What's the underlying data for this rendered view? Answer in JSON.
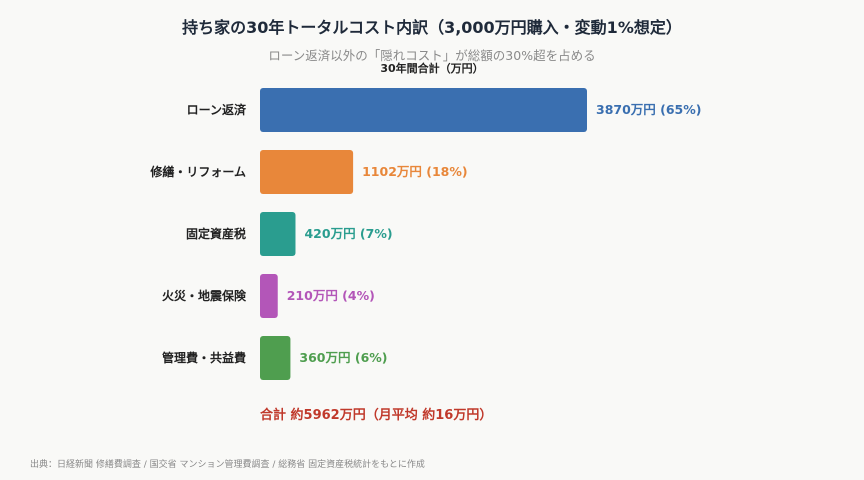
{
  "title": "持ち家の30年トータルコスト内訳（3,000万円購入・変動1%想定）",
  "subtitle": "ローン返済以外の「隠れコスト」が総額の30%超を占める",
  "axis_label": "30年間合計（万円）",
  "total_label": "合計 約5962万円（月平均 約16万円）",
  "source": "出典：日経新聞 修繕費調査 / 国交省 マンション管理費調査 / 総務省 固定資産税統計をもとに作成",
  "colors": {
    "loan": "#3a6fb0",
    "repair": "#e8873a",
    "tax": "#2a9d8f",
    "insurance": "#b356b8",
    "management": "#4f9e4f",
    "total": "#c0392b"
  },
  "chart_data": {
    "type": "bar",
    "orientation": "horizontal",
    "title": "持ち家の30年トータルコスト内訳（3,000万円購入・変動1%想定）",
    "subtitle": "ローン返済以外の「隠れコスト」が総額の30%超を占める",
    "xlabel": "30年間合計（万円）",
    "categories": [
      "ローン返済",
      "修繕・リフォーム",
      "固定資産税",
      "火災・地震保険",
      "管理費・共益費"
    ],
    "values": [
      3870,
      1102,
      420,
      210,
      360
    ],
    "data_labels": [
      "3870万円 (65%)",
      "1102万円 (18%)",
      "420万円 (7%)",
      "210万円 (4%)",
      "360万円 (6%)"
    ],
    "bar_colors": [
      "#3a6fb0",
      "#e8873a",
      "#2a9d8f",
      "#b356b8",
      "#4f9e4f"
    ],
    "xlim": [
      0,
      3870
    ],
    "grid": false,
    "legend": "none"
  }
}
